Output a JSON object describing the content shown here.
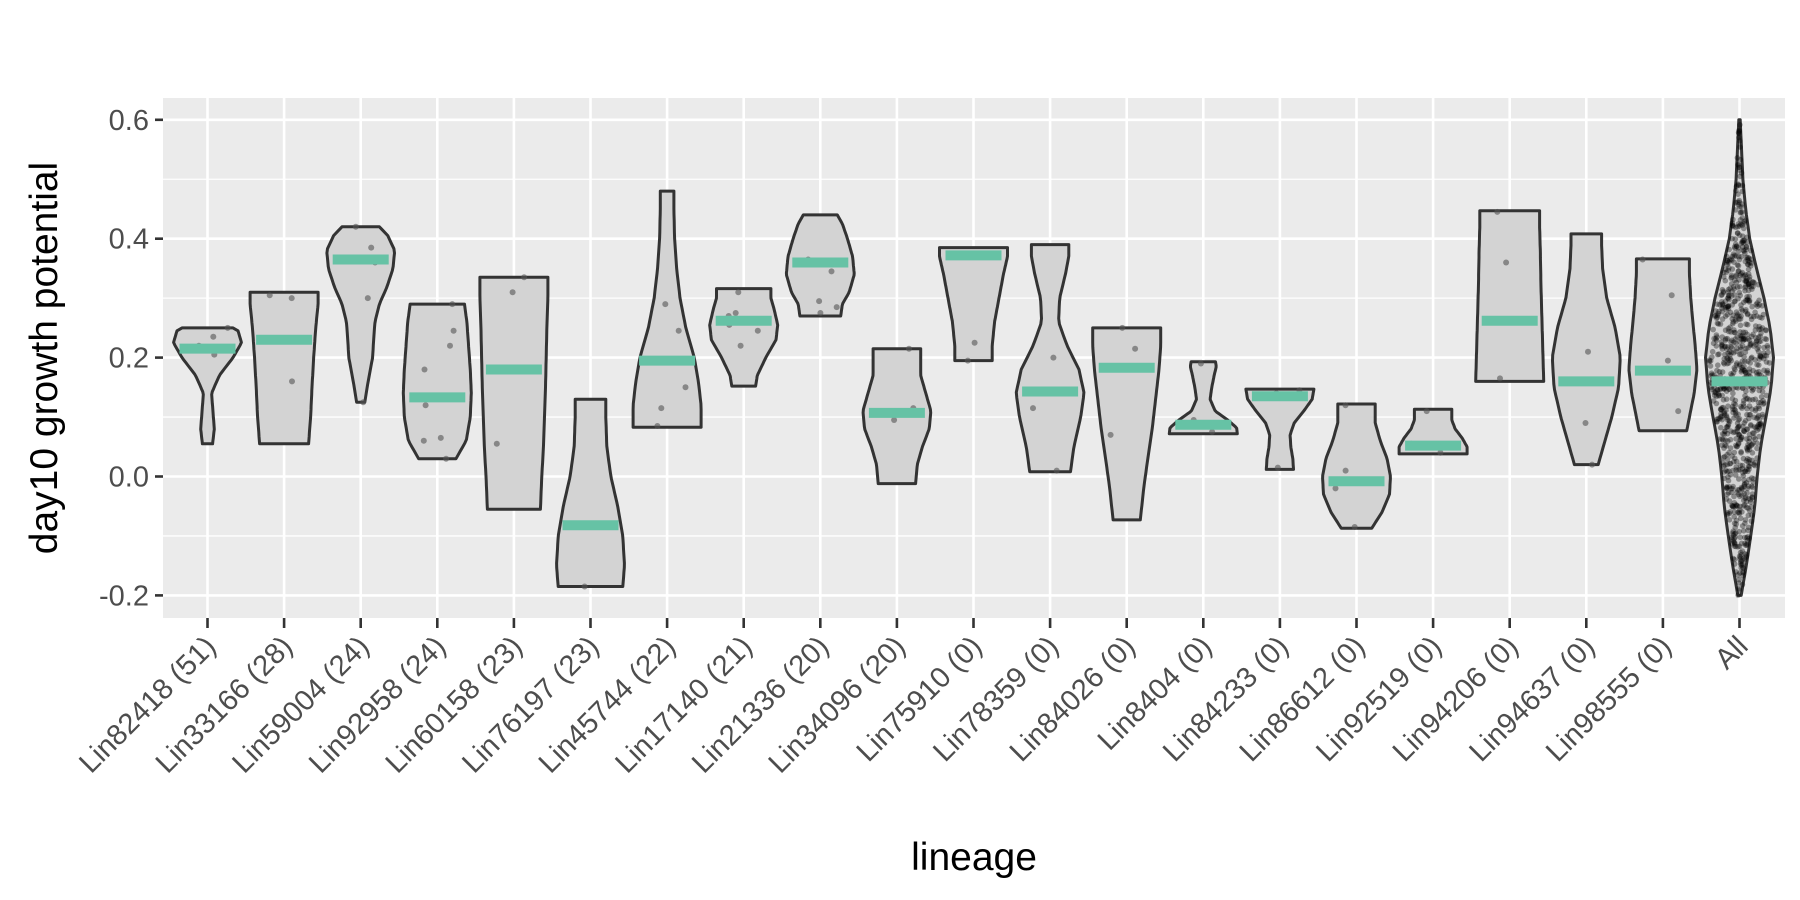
{
  "chart_data": {
    "type": "violin",
    "xlabel": "lineage",
    "ylabel": "day10 growth potential",
    "ylim": [
      -0.24,
      0.64
    ],
    "y_ticks": [
      {
        "value": -0.2,
        "label": "-0.2"
      },
      {
        "value": 0.0,
        "label": "0.0"
      },
      {
        "value": 0.2,
        "label": "0.2"
      },
      {
        "value": 0.4,
        "label": "0.4"
      },
      {
        "value": 0.6,
        "label": "0.6"
      }
    ],
    "grid": true,
    "colors": {
      "panel_background": "#EBEBEB",
      "grid": "#FFFFFF",
      "violin_fill": "#D3D3D3",
      "violin_outline": "#333333",
      "median_bar": "#66C2A5",
      "points": "#555555"
    },
    "categories": [
      {
        "label": "Lin82418 (51)",
        "min": 0.055,
        "max": 0.25,
        "median": 0.215,
        "profile": [
          [
            0.055,
            0.15
          ],
          [
            0.08,
            0.2
          ],
          [
            0.11,
            0.16
          ],
          [
            0.14,
            0.12
          ],
          [
            0.17,
            0.35
          ],
          [
            0.2,
            0.75
          ],
          [
            0.225,
            1.0
          ],
          [
            0.245,
            0.9
          ],
          [
            0.25,
            0.75
          ]
        ],
        "points": [
          0.205,
          0.22,
          0.235,
          0.25
        ]
      },
      {
        "label": "Lin33166 (28)",
        "min": 0.055,
        "max": 0.31,
        "median": 0.23,
        "profile": [
          [
            0.055,
            0.72
          ],
          [
            0.1,
            0.78
          ],
          [
            0.15,
            0.82
          ],
          [
            0.2,
            0.87
          ],
          [
            0.25,
            0.93
          ],
          [
            0.29,
            1.0
          ],
          [
            0.31,
            1.0
          ]
        ],
        "points": [
          0.16,
          0.3,
          0.305
        ]
      },
      {
        "label": "Lin59004 (24)",
        "min": 0.125,
        "max": 0.42,
        "median": 0.365,
        "profile": [
          [
            0.125,
            0.12
          ],
          [
            0.16,
            0.22
          ],
          [
            0.2,
            0.35
          ],
          [
            0.23,
            0.38
          ],
          [
            0.26,
            0.42
          ],
          [
            0.29,
            0.55
          ],
          [
            0.32,
            0.78
          ],
          [
            0.35,
            0.95
          ],
          [
            0.38,
            1.0
          ],
          [
            0.405,
            0.8
          ],
          [
            0.42,
            0.55
          ]
        ],
        "points": [
          0.125,
          0.3,
          0.36,
          0.385,
          0.42
        ]
      },
      {
        "label": "Lin92958 (24)",
        "min": 0.03,
        "max": 0.29,
        "median": 0.133,
        "profile": [
          [
            0.03,
            0.55
          ],
          [
            0.06,
            0.85
          ],
          [
            0.1,
            0.97
          ],
          [
            0.14,
            1.0
          ],
          [
            0.18,
            0.97
          ],
          [
            0.22,
            0.92
          ],
          [
            0.26,
            0.87
          ],
          [
            0.29,
            0.8
          ]
        ],
        "points": [
          0.03,
          0.06,
          0.065,
          0.12,
          0.18,
          0.22,
          0.245,
          0.29
        ]
      },
      {
        "label": "Lin60158 (23)",
        "min": -0.055,
        "max": 0.335,
        "median": 0.18,
        "profile": [
          [
            -0.055,
            0.78
          ],
          [
            0.0,
            0.82
          ],
          [
            0.05,
            0.87
          ],
          [
            0.1,
            0.9
          ],
          [
            0.15,
            0.93
          ],
          [
            0.2,
            0.95
          ],
          [
            0.25,
            0.97
          ],
          [
            0.3,
            1.0
          ],
          [
            0.335,
            1.0
          ]
        ],
        "points": [
          0.055,
          0.31,
          0.335
        ]
      },
      {
        "label": "Lin76197 (23)",
        "min": -0.185,
        "max": 0.13,
        "median": -0.082,
        "profile": [
          [
            -0.185,
            0.95
          ],
          [
            -0.15,
            1.0
          ],
          [
            -0.1,
            0.95
          ],
          [
            -0.05,
            0.8
          ],
          [
            0.0,
            0.6
          ],
          [
            0.05,
            0.48
          ],
          [
            0.1,
            0.45
          ],
          [
            0.13,
            0.45
          ]
        ],
        "points": [
          -0.185
        ]
      },
      {
        "label": "Lin45744 (22)",
        "min": 0.083,
        "max": 0.48,
        "median": 0.195,
        "profile": [
          [
            0.083,
            1.0
          ],
          [
            0.12,
            1.0
          ],
          [
            0.16,
            0.92
          ],
          [
            0.2,
            0.8
          ],
          [
            0.25,
            0.55
          ],
          [
            0.3,
            0.38
          ],
          [
            0.35,
            0.28
          ],
          [
            0.4,
            0.22
          ],
          [
            0.45,
            0.2
          ],
          [
            0.48,
            0.2
          ]
        ],
        "points": [
          0.085,
          0.115,
          0.15,
          0.245,
          0.29
        ]
      },
      {
        "label": "Lin17140 (21)",
        "min": 0.152,
        "max": 0.316,
        "median": 0.262,
        "profile": [
          [
            0.152,
            0.35
          ],
          [
            0.17,
            0.4
          ],
          [
            0.2,
            0.65
          ],
          [
            0.23,
            0.95
          ],
          [
            0.255,
            1.0
          ],
          [
            0.28,
            0.9
          ],
          [
            0.3,
            0.8
          ],
          [
            0.316,
            0.8
          ]
        ],
        "points": [
          0.22,
          0.245,
          0.255,
          0.27,
          0.275,
          0.31
        ]
      },
      {
        "label": "Lin21336 (20)",
        "min": 0.27,
        "max": 0.44,
        "median": 0.36,
        "profile": [
          [
            0.27,
            0.6
          ],
          [
            0.29,
            0.65
          ],
          [
            0.31,
            0.85
          ],
          [
            0.34,
            1.0
          ],
          [
            0.37,
            0.95
          ],
          [
            0.4,
            0.8
          ],
          [
            0.425,
            0.65
          ],
          [
            0.44,
            0.5
          ]
        ],
        "points": [
          0.275,
          0.285,
          0.295,
          0.345,
          0.365
        ]
      },
      {
        "label": "Lin34096 (20)",
        "min": -0.012,
        "max": 0.215,
        "median": 0.107,
        "profile": [
          [
            -0.012,
            0.55
          ],
          [
            0.02,
            0.6
          ],
          [
            0.05,
            0.75
          ],
          [
            0.08,
            0.95
          ],
          [
            0.11,
            1.0
          ],
          [
            0.14,
            0.85
          ],
          [
            0.17,
            0.7
          ],
          [
            0.2,
            0.7
          ],
          [
            0.215,
            0.7
          ]
        ],
        "points": [
          0.095,
          0.115,
          0.215
        ]
      },
      {
        "label": "Lin75910 (0)",
        "min": 0.195,
        "max": 0.385,
        "median": 0.372,
        "profile": [
          [
            0.195,
            0.55
          ],
          [
            0.22,
            0.55
          ],
          [
            0.26,
            0.62
          ],
          [
            0.3,
            0.75
          ],
          [
            0.34,
            0.88
          ],
          [
            0.37,
            1.0
          ],
          [
            0.385,
            1.0
          ]
        ],
        "points": [
          0.195,
          0.225,
          0.375
        ]
      },
      {
        "label": "Lin78359 (0)",
        "min": 0.008,
        "max": 0.39,
        "median": 0.143,
        "profile": [
          [
            0.008,
            0.6
          ],
          [
            0.05,
            0.7
          ],
          [
            0.1,
            0.9
          ],
          [
            0.14,
            1.0
          ],
          [
            0.18,
            0.85
          ],
          [
            0.22,
            0.5
          ],
          [
            0.26,
            0.25
          ],
          [
            0.3,
            0.28
          ],
          [
            0.34,
            0.45
          ],
          [
            0.37,
            0.55
          ],
          [
            0.39,
            0.55
          ]
        ],
        "points": [
          0.01,
          0.115,
          0.2
        ]
      },
      {
        "label": "Lin84026 (0)",
        "min": -0.073,
        "max": 0.25,
        "median": 0.183,
        "profile": [
          [
            -0.073,
            0.4
          ],
          [
            -0.02,
            0.5
          ],
          [
            0.03,
            0.62
          ],
          [
            0.08,
            0.75
          ],
          [
            0.13,
            0.85
          ],
          [
            0.18,
            0.95
          ],
          [
            0.22,
            1.0
          ],
          [
            0.25,
            1.0
          ]
        ],
        "points": [
          0.07,
          0.215,
          0.25
        ]
      },
      {
        "label": "Lin8404 (0)",
        "min": 0.072,
        "max": 0.193,
        "median": 0.087,
        "profile": [
          [
            0.072,
            1.0
          ],
          [
            0.082,
            0.98
          ],
          [
            0.095,
            0.72
          ],
          [
            0.11,
            0.35
          ],
          [
            0.13,
            0.2
          ],
          [
            0.15,
            0.25
          ],
          [
            0.17,
            0.32
          ],
          [
            0.185,
            0.38
          ],
          [
            0.193,
            0.36
          ]
        ],
        "points": [
          0.075,
          0.095,
          0.19
        ]
      },
      {
        "label": "Lin84233 (0)",
        "min": 0.012,
        "max": 0.147,
        "median": 0.135,
        "profile": [
          [
            0.012,
            0.4
          ],
          [
            0.03,
            0.38
          ],
          [
            0.05,
            0.32
          ],
          [
            0.07,
            0.3
          ],
          [
            0.09,
            0.42
          ],
          [
            0.11,
            0.7
          ],
          [
            0.13,
            0.95
          ],
          [
            0.147,
            1.0
          ]
        ],
        "points": [
          0.015,
          0.14,
          0.145
        ]
      },
      {
        "label": "Lin86612 (0)",
        "min": -0.087,
        "max": 0.122,
        "median": -0.008,
        "profile": [
          [
            -0.087,
            0.45
          ],
          [
            -0.06,
            0.75
          ],
          [
            -0.03,
            0.97
          ],
          [
            0.0,
            1.0
          ],
          [
            0.03,
            0.9
          ],
          [
            0.06,
            0.7
          ],
          [
            0.09,
            0.55
          ],
          [
            0.122,
            0.55
          ]
        ],
        "points": [
          -0.085,
          -0.02,
          0.01,
          0.12
        ]
      },
      {
        "label": "Lin92519 (0)",
        "min": 0.038,
        "max": 0.113,
        "median": 0.052,
        "profile": [
          [
            0.038,
            1.0
          ],
          [
            0.05,
            1.0
          ],
          [
            0.065,
            0.85
          ],
          [
            0.08,
            0.65
          ],
          [
            0.095,
            0.55
          ],
          [
            0.113,
            0.55
          ]
        ],
        "points": [
          0.04,
          0.055,
          0.11
        ]
      },
      {
        "label": "Lin94206 (0)",
        "min": 0.16,
        "max": 0.447,
        "median": 0.262,
        "profile": [
          [
            0.16,
            1.0
          ],
          [
            0.2,
            0.98
          ],
          [
            0.26,
            0.95
          ],
          [
            0.32,
            0.92
          ],
          [
            0.38,
            0.9
          ],
          [
            0.42,
            0.88
          ],
          [
            0.447,
            0.88
          ]
        ],
        "points": [
          0.165,
          0.36,
          0.445
        ]
      },
      {
        "label": "Lin94637 (0)",
        "min": 0.02,
        "max": 0.408,
        "median": 0.16,
        "profile": [
          [
            0.02,
            0.35
          ],
          [
            0.05,
            0.5
          ],
          [
            0.1,
            0.75
          ],
          [
            0.15,
            0.95
          ],
          [
            0.2,
            1.0
          ],
          [
            0.25,
            0.85
          ],
          [
            0.3,
            0.6
          ],
          [
            0.35,
            0.48
          ],
          [
            0.39,
            0.45
          ],
          [
            0.408,
            0.45
          ]
        ],
        "points": [
          0.02,
          0.09,
          0.21
        ]
      },
      {
        "label": "Lin98555 (0)",
        "min": 0.077,
        "max": 0.366,
        "median": 0.178,
        "profile": [
          [
            0.077,
            0.7
          ],
          [
            0.1,
            0.78
          ],
          [
            0.14,
            0.92
          ],
          [
            0.18,
            1.0
          ],
          [
            0.22,
            0.95
          ],
          [
            0.26,
            0.88
          ],
          [
            0.3,
            0.82
          ],
          [
            0.34,
            0.78
          ],
          [
            0.366,
            0.78
          ]
        ],
        "points": [
          0.11,
          0.195,
          0.305,
          0.365
        ]
      },
      {
        "label": "All",
        "min": -0.2,
        "max": 0.6,
        "median": 0.16,
        "profile": [
          [
            -0.2,
            0.05
          ],
          [
            -0.15,
            0.2
          ],
          [
            -0.1,
            0.33
          ],
          [
            -0.05,
            0.45
          ],
          [
            0.0,
            0.52
          ],
          [
            0.05,
            0.62
          ],
          [
            0.1,
            0.78
          ],
          [
            0.15,
            0.93
          ],
          [
            0.2,
            1.0
          ],
          [
            0.25,
            0.9
          ],
          [
            0.3,
            0.72
          ],
          [
            0.35,
            0.5
          ],
          [
            0.4,
            0.3
          ],
          [
            0.45,
            0.18
          ],
          [
            0.5,
            0.1
          ],
          [
            0.55,
            0.06
          ],
          [
            0.6,
            0.02
          ]
        ],
        "points": []
      }
    ]
  }
}
